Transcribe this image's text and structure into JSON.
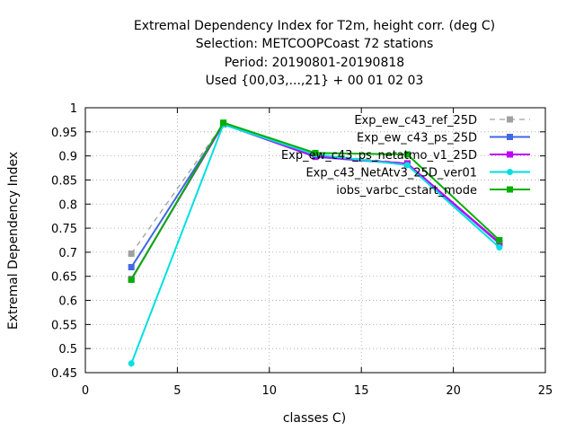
{
  "chart_data": {
    "type": "line",
    "title_lines": [
      "Extremal Dependency Index  for T2m, height corr. (deg C)",
      "Selection: METCOOPCoast     72 stations",
      "Period: 20190801-20190818",
      "Used {00,03,...,21} + 00 01 02 03"
    ],
    "xlabel": "classes C)",
    "ylabel": "Extremal Dependency Index",
    "xlim": [
      0,
      25
    ],
    "ylim": [
      0.45,
      1.0
    ],
    "xticks": [
      0,
      5,
      10,
      15,
      20,
      25
    ],
    "yticks": [
      0.45,
      0.5,
      0.55,
      0.6,
      0.65,
      0.7,
      0.75,
      0.8,
      0.85,
      0.9,
      0.95,
      1.0
    ],
    "xtick_labels": [
      "0",
      "5",
      "10",
      "15",
      "20",
      "25"
    ],
    "ytick_labels": [
      "0.45",
      "0.5",
      "0.55",
      "0.6",
      "0.65",
      "0.7",
      "0.75",
      "0.8",
      "0.85",
      "0.9",
      "0.95",
      "1"
    ],
    "grid": true,
    "legend_position": "top-right",
    "x": [
      2.5,
      7.5,
      12.5,
      17.5,
      22.5
    ],
    "series": [
      {
        "name": "Exp_ew_c43_ref_25D",
        "color": "#a0a0a0",
        "dashed": true,
        "marker": "square",
        "values": [
          0.697,
          0.967,
          0.903,
          0.885,
          0.72
        ]
      },
      {
        "name": "Exp_ew_c43_ps_25D",
        "color": "#4169e1",
        "dashed": false,
        "marker": "square",
        "values": [
          0.669,
          0.966,
          0.898,
          0.883,
          0.718
        ]
      },
      {
        "name": "Exp_ew_c43_ps_netatmo_v1_25D",
        "color": "#c000ff",
        "dashed": false,
        "marker": "square",
        "values": [
          0.644,
          0.966,
          0.899,
          0.884,
          0.72
        ]
      },
      {
        "name": "Exp_c43_NetAtv3_25D_ver01",
        "color": "#00e0e0",
        "dashed": false,
        "marker": "circle",
        "values": [
          0.469,
          0.965,
          0.903,
          0.881,
          0.71
        ]
      },
      {
        "name": "iobs_varbc_cstart_mode",
        "color": "#00b000",
        "dashed": false,
        "marker": "square",
        "values": [
          0.643,
          0.969,
          0.906,
          0.903,
          0.725
        ]
      }
    ]
  }
}
